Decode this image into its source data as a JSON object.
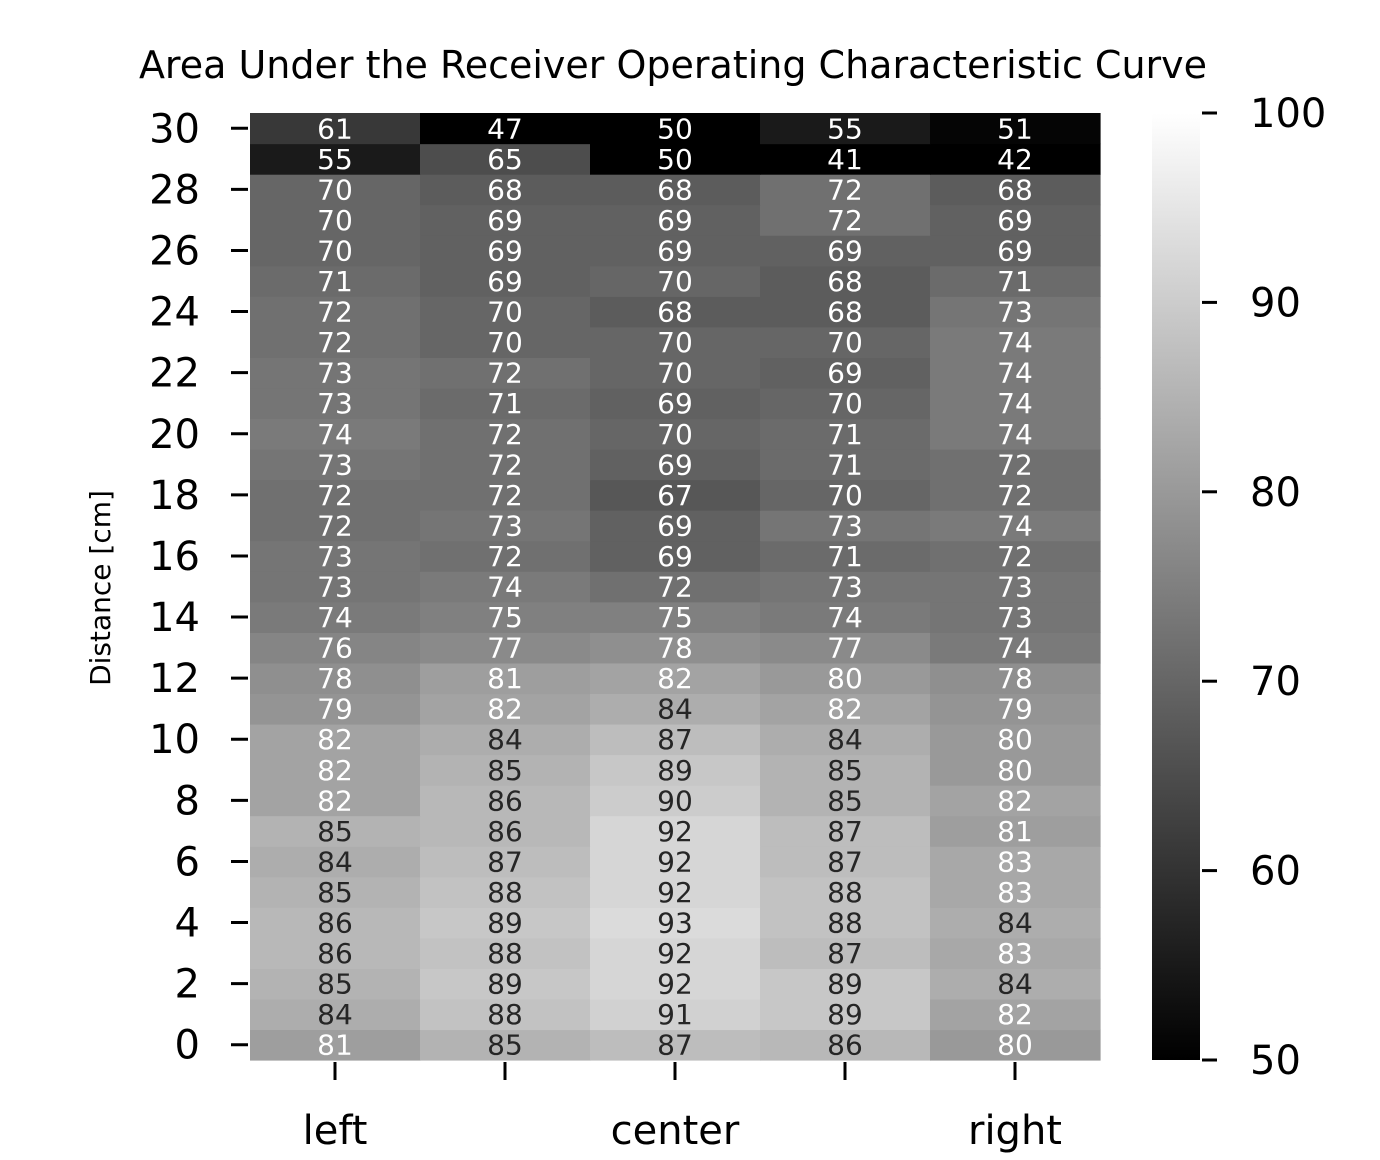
{
  "chart_data": {
    "type": "heatmap",
    "title": "Area Under the Receiver Operating Characteristic Curve",
    "ylabel": "Distance [cm]",
    "xlabel": "",
    "x_categories": [
      "left",
      "",
      "center",
      "",
      "right"
    ],
    "x_tick_labels": [
      "left",
      "",
      "center",
      "",
      "right"
    ],
    "y_values": [
      0,
      1,
      2,
      3,
      4,
      5,
      6,
      7,
      8,
      9,
      10,
      11,
      12,
      13,
      14,
      15,
      16,
      17,
      18,
      19,
      20,
      21,
      22,
      23,
      24,
      25,
      26,
      27,
      28,
      29,
      30
    ],
    "y_tick_labels": [
      "0",
      "2",
      "4",
      "6",
      "8",
      "10",
      "12",
      "14",
      "16",
      "18",
      "20",
      "22",
      "24",
      "26",
      "28",
      "30"
    ],
    "values": [
      [
        81,
        85,
        87,
        86,
        80
      ],
      [
        84,
        88,
        91,
        89,
        82
      ],
      [
        85,
        89,
        92,
        89,
        84
      ],
      [
        86,
        88,
        92,
        87,
        83
      ],
      [
        86,
        89,
        93,
        88,
        84
      ],
      [
        85,
        88,
        92,
        88,
        83
      ],
      [
        84,
        87,
        92,
        87,
        83
      ],
      [
        85,
        86,
        92,
        87,
        81
      ],
      [
        82,
        86,
        90,
        85,
        82
      ],
      [
        82,
        85,
        89,
        85,
        80
      ],
      [
        82,
        84,
        87,
        84,
        80
      ],
      [
        79,
        82,
        84,
        82,
        79
      ],
      [
        78,
        81,
        82,
        80,
        78
      ],
      [
        76,
        77,
        78,
        77,
        74
      ],
      [
        74,
        75,
        75,
        74,
        73
      ],
      [
        73,
        74,
        72,
        73,
        73
      ],
      [
        73,
        72,
        69,
        71,
        72
      ],
      [
        72,
        73,
        69,
        73,
        74
      ],
      [
        72,
        72,
        67,
        70,
        72
      ],
      [
        73,
        72,
        69,
        71,
        72
      ],
      [
        74,
        72,
        70,
        71,
        74
      ],
      [
        73,
        71,
        69,
        70,
        74
      ],
      [
        73,
        72,
        70,
        69,
        74
      ],
      [
        72,
        70,
        70,
        70,
        74
      ],
      [
        72,
        70,
        68,
        68,
        73
      ],
      [
        71,
        69,
        70,
        68,
        71
      ],
      [
        70,
        69,
        69,
        69,
        69
      ],
      [
        70,
        69,
        69,
        72,
        69
      ],
      [
        70,
        68,
        68,
        72,
        68
      ],
      [
        55,
        65,
        50,
        41,
        42
      ],
      [
        61,
        47,
        50,
        55,
        51
      ]
    ],
    "colormap": "gray",
    "vmin": 50,
    "vmax": 100,
    "colorbar_ticks": [
      "50",
      "60",
      "70",
      "80",
      "90",
      "100"
    ],
    "annotations": true,
    "annotation_text_color_threshold": 83.5,
    "annotation_color_light": "#ffffff",
    "annotation_color_dark": "#262626"
  }
}
